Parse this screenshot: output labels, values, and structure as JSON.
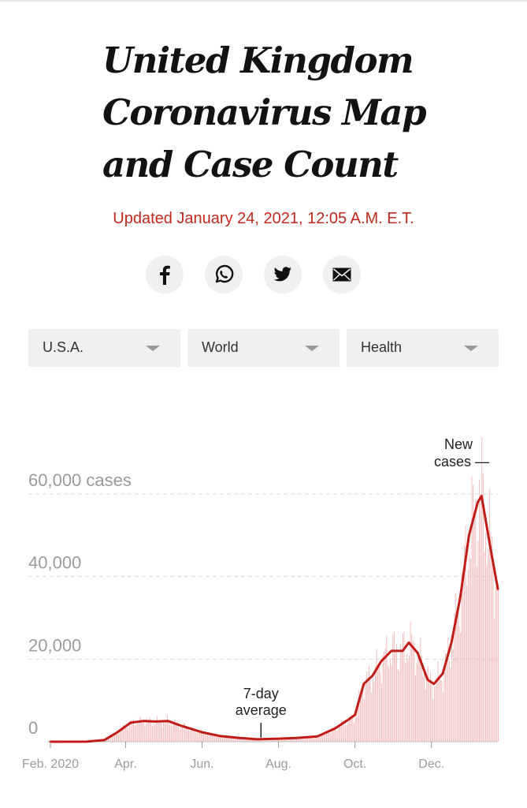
{
  "headline": {
    "line1": "United Kingdom",
    "line2": "Coronavirus Map",
    "line3": "and Case Count"
  },
  "updated": "Updated January 24, 2021, 12:05 A.M. E.T.",
  "share": {
    "icons": [
      "facebook-icon",
      "whatsapp-icon",
      "twitter-icon",
      "email-icon"
    ]
  },
  "nav": {
    "items": [
      {
        "label": "U.S.A."
      },
      {
        "label": "World"
      },
      {
        "label": "Health"
      }
    ]
  },
  "colors": {
    "accent": "#c2281b",
    "bar": "#f2b6b6",
    "line": "#c11b17",
    "grid": "#d9d9d9",
    "axis_text": "#9b9b9b"
  },
  "chart_data": {
    "type": "bar",
    "x_range": [
      "2020-02-01",
      "2021-01-23"
    ],
    "y_ticks": [
      {
        "value": 60000,
        "label": "60,000 cases"
      },
      {
        "value": 40000,
        "label": "40,000"
      },
      {
        "value": 20000,
        "label": "20,000"
      },
      {
        "value": 0,
        "label": "0"
      }
    ],
    "ylim": [
      0,
      60000
    ],
    "grid": true,
    "x_ticks": [
      {
        "date": "2020-02-01",
        "label": "Feb. 2020"
      },
      {
        "date": "2020-04-01",
        "label": "Apr."
      },
      {
        "date": "2020-06-01",
        "label": "Jun."
      },
      {
        "date": "2020-08-01",
        "label": "Aug."
      },
      {
        "date": "2020-10-01",
        "label": "Oct."
      },
      {
        "date": "2020-12-01",
        "label": "Dec."
      }
    ],
    "annotations": [
      {
        "lines": [
          "New",
          "cases —"
        ],
        "target": "new_cases"
      },
      {
        "lines": [
          "7-day",
          "average"
        ],
        "target": "average",
        "date": "2020-07-18"
      }
    ],
    "series": [
      {
        "name": "New cases",
        "kind": "bar",
        "daily_estimate": true
      },
      {
        "name": "7-day average",
        "kind": "line",
        "points": [
          [
            "2020-02-01",
            0
          ],
          [
            "2020-03-01",
            20
          ],
          [
            "2020-03-15",
            400
          ],
          [
            "2020-03-25",
            2200
          ],
          [
            "2020-04-05",
            4600
          ],
          [
            "2020-04-15",
            5000
          ],
          [
            "2020-04-25",
            4900
          ],
          [
            "2020-05-05",
            5000
          ],
          [
            "2020-05-15",
            3900
          ],
          [
            "2020-06-01",
            2300
          ],
          [
            "2020-06-15",
            1400
          ],
          [
            "2020-07-01",
            900
          ],
          [
            "2020-07-15",
            600
          ],
          [
            "2020-08-01",
            750
          ],
          [
            "2020-08-15",
            900
          ],
          [
            "2020-09-01",
            1300
          ],
          [
            "2020-09-15",
            3200
          ],
          [
            "2020-09-25",
            5200
          ],
          [
            "2020-10-01",
            6500
          ],
          [
            "2020-10-08",
            14000
          ],
          [
            "2020-10-15",
            16000
          ],
          [
            "2020-10-22",
            19500
          ],
          [
            "2020-10-30",
            22000
          ],
          [
            "2020-11-08",
            22000
          ],
          [
            "2020-11-13",
            24000
          ],
          [
            "2020-11-20",
            21500
          ],
          [
            "2020-11-28",
            15000
          ],
          [
            "2020-12-03",
            14000
          ],
          [
            "2020-12-10",
            16500
          ],
          [
            "2020-12-17",
            24000
          ],
          [
            "2020-12-24",
            35000
          ],
          [
            "2020-12-31",
            50000
          ],
          [
            "2021-01-07",
            58000
          ],
          [
            "2021-01-10",
            59500
          ],
          [
            "2021-01-17",
            47000
          ],
          [
            "2021-01-23",
            37000
          ]
        ]
      }
    ]
  }
}
